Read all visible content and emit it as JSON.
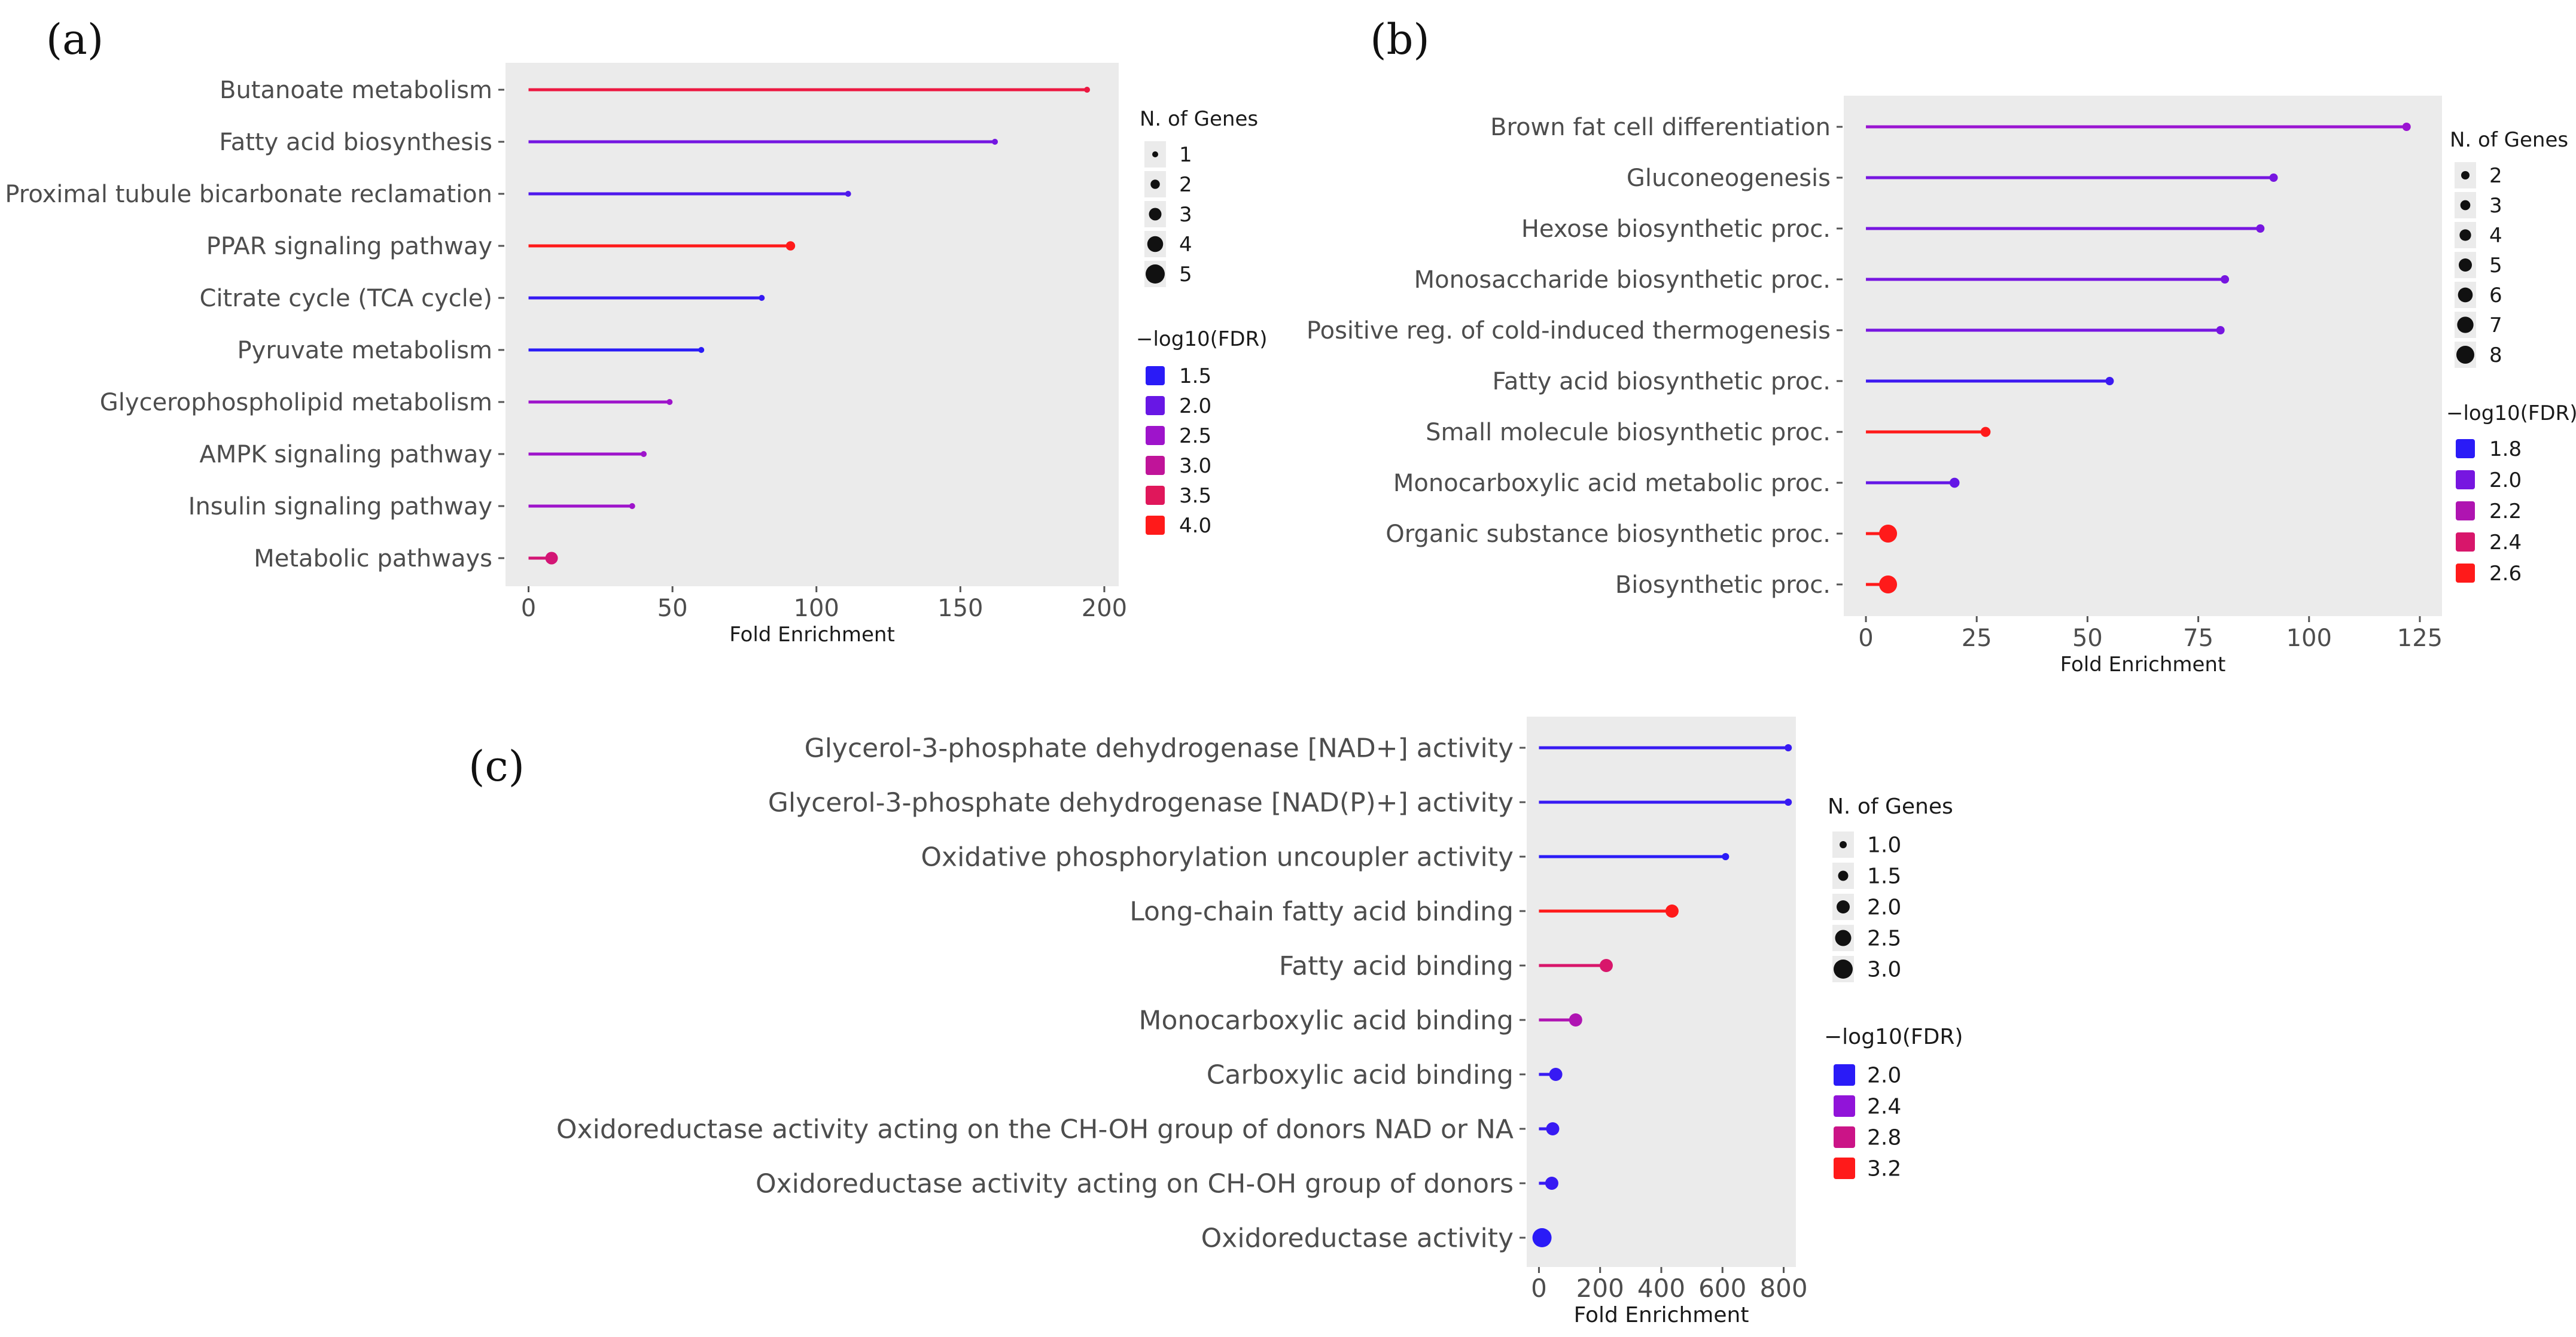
{
  "chart_data": [
    {
      "panel": "(a)",
      "type": "lollipop",
      "xlabel": "Fold Enrichment",
      "ylabel": "",
      "xlim": [
        -8,
        205
      ],
      "xticks": [
        0,
        50,
        100,
        150,
        200
      ],
      "categories": [
        "Butanoate metabolism",
        "Fatty acid biosynthesis",
        "Proximal tubule bicarbonate reclamation",
        "PPAR signaling pathway",
        "Citrate cycle (TCA cycle)",
        "Pyruvate metabolism",
        "Glycerophospholipid metabolism",
        "AMPK signaling pathway",
        "Insulin signaling pathway",
        "Metabolic pathways"
      ],
      "values": [
        194,
        162,
        111,
        91,
        81,
        60,
        49,
        40,
        36,
        8
      ],
      "n_genes": [
        1,
        1,
        1,
        2,
        1,
        1,
        1,
        1,
        1,
        3
      ],
      "log10_fdr": [
        3.7,
        2.1,
        1.8,
        4.0,
        1.6,
        1.5,
        2.5,
        2.5,
        2.5,
        3.3
      ],
      "size_legend": {
        "title": "N. of Genes",
        "values": [
          "1",
          "2",
          "3",
          "4",
          "5"
        ]
      },
      "color_legend": {
        "title": "−log10(FDR)",
        "values": [
          "1.5",
          "2.0",
          "2.5",
          "3.0",
          "3.5",
          "4.0"
        ]
      }
    },
    {
      "panel": "(b)",
      "type": "lollipop",
      "xlabel": "Fold Enrichment",
      "ylabel": "",
      "xlim": [
        -5,
        130
      ],
      "xticks": [
        0,
        25,
        50,
        75,
        100,
        125
      ],
      "categories": [
        "Brown fat cell differentiation",
        "Gluconeogenesis",
        "Hexose biosynthetic proc.",
        "Monosaccharide biosynthetic proc.",
        "Positive reg. of cold-induced thermogenesis",
        "Fatty acid biosynthetic proc.",
        "Small molecule biosynthetic proc.",
        "Monocarboxylic acid metabolic proc.",
        "Organic substance biosynthetic proc.",
        "Biosynthetic proc."
      ],
      "values": [
        122,
        92,
        89,
        81,
        80,
        55,
        27,
        20,
        5,
        5
      ],
      "n_genes": [
        2,
        2,
        2,
        2,
        2,
        2,
        3,
        3,
        8,
        8
      ],
      "log10_fdr": [
        2.1,
        2.0,
        2.0,
        2.0,
        2.0,
        1.85,
        2.65,
        1.95,
        2.65,
        2.65
      ],
      "size_legend": {
        "title": "N. of Genes",
        "values": [
          "2",
          "3",
          "4",
          "5",
          "6",
          "7",
          "8"
        ]
      },
      "color_legend": {
        "title": "−log10(FDR)",
        "values": [
          "1.8",
          "2.0",
          "2.2",
          "2.4",
          "2.6"
        ]
      }
    },
    {
      "panel": "(c)",
      "type": "lollipop",
      "xlabel": "Fold Enrichment",
      "ylabel": "",
      "xlim": [
        -40,
        840
      ],
      "xticks": [
        0,
        200,
        400,
        600,
        800
      ],
      "categories": [
        "Glycerol-3-phosphate dehydrogenase [NAD+] activity",
        "Glycerol-3-phosphate dehydrogenase [NAD(P)+] activity",
        "Oxidative phosphorylation uncoupler activity",
        "Long-chain fatty acid binding",
        "Fatty acid binding",
        "Monocarboxylic acid binding",
        "Carboxylic acid binding",
        "Oxidoreductase activity acting on the CH-OH group of donors NAD or NA",
        "Oxidoreductase activity acting on CH-OH group of donors",
        "Oxidoreductase activity"
      ],
      "values": [
        815,
        815,
        610,
        435,
        220,
        120,
        55,
        45,
        42,
        10
      ],
      "n_genes": [
        1,
        1,
        1,
        2,
        2,
        2,
        2,
        2,
        2,
        3
      ],
      "log10_fdr": [
        2.05,
        2.05,
        1.95,
        3.2,
        2.9,
        2.6,
        2.05,
        2.05,
        2.05,
        1.9
      ],
      "size_legend": {
        "title": "N. of Genes",
        "values": [
          "1.0",
          "1.5",
          "2.0",
          "2.5",
          "3.0"
        ]
      },
      "color_legend": {
        "title": "−log10(FDR)",
        "values": [
          "2.0",
          "2.4",
          "2.8",
          "3.2"
        ]
      }
    }
  ],
  "colors": {
    "panel_background": "#ebebeb",
    "low_fdr": "#2a1bf7",
    "high_fdr": "#ff1a1a"
  }
}
